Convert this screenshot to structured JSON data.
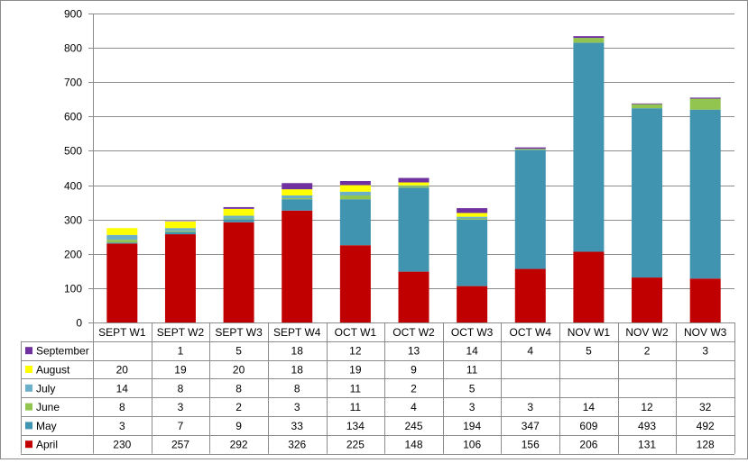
{
  "chart_data": {
    "type": "bar",
    "stacked": true,
    "categories": [
      "SEPT W1",
      "SEPT W2",
      "SEPT W3",
      "SEPT W4",
      "OCT W1",
      "OCT W2",
      "OCT W3",
      "OCT W4",
      "NOV W1",
      "NOV W2",
      "NOV W3"
    ],
    "ylim": [
      0,
      900
    ],
    "yticks": [
      0,
      100,
      200,
      300,
      400,
      500,
      600,
      700,
      800,
      900
    ],
    "grid": true,
    "data_table": true,
    "series": [
      {
        "name": "April",
        "color": "#C00000",
        "values": [
          230,
          257,
          292,
          326,
          225,
          148,
          106,
          156,
          206,
          131,
          128
        ],
        "labels": [
          "230",
          "257",
          "292",
          "326",
          "225",
          "148",
          "106",
          "156",
          "206",
          "131",
          "128"
        ]
      },
      {
        "name": "May",
        "color": "#4094B0",
        "values": [
          3,
          7,
          9,
          33,
          134,
          245,
          194,
          347,
          609,
          493,
          492
        ],
        "labels": [
          "3",
          "7",
          "9",
          "33",
          "134",
          "245",
          "194",
          "347",
          "609",
          "493",
          "492"
        ]
      },
      {
        "name": "June",
        "color": "#92C450",
        "values": [
          8,
          3,
          2,
          3,
          11,
          4,
          3,
          3,
          14,
          12,
          32
        ],
        "labels": [
          "8",
          "3",
          "2",
          "3",
          "11",
          "4",
          "3",
          "3",
          "14",
          "12",
          "32"
        ]
      },
      {
        "name": "July",
        "color": "#6BB0C8",
        "values": [
          14,
          8,
          8,
          8,
          11,
          2,
          5,
          0,
          0,
          0,
          0
        ],
        "labels": [
          "14",
          "8",
          "8",
          "8",
          "11",
          "2",
          "5",
          "",
          "",
          "",
          ""
        ]
      },
      {
        "name": "August",
        "color": "#FFFF00",
        "values": [
          20,
          19,
          20,
          18,
          19,
          9,
          11,
          0,
          0,
          0,
          0
        ],
        "labels": [
          "20",
          "19",
          "20",
          "18",
          "19",
          "9",
          "11",
          "",
          "",
          "",
          ""
        ]
      },
      {
        "name": "September",
        "color": "#7030A0",
        "values": [
          0,
          1,
          5,
          18,
          12,
          13,
          14,
          4,
          5,
          2,
          3
        ],
        "labels": [
          "",
          "1",
          "5",
          "18",
          "12",
          "13",
          "14",
          "4",
          "5",
          "2",
          "3"
        ]
      }
    ]
  }
}
